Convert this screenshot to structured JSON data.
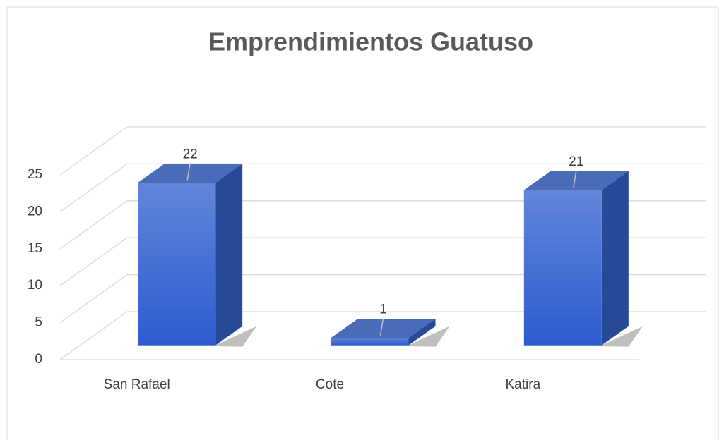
{
  "chart_data": {
    "type": "bar3d",
    "title": "Emprendimientos Guatuso",
    "categories": [
      "San Rafael",
      "Cote",
      "Katira"
    ],
    "values": [
      22,
      1,
      21
    ],
    "color": "#3a66cc",
    "ylim": [
      0,
      25
    ],
    "yticks": [
      0,
      5,
      10,
      15,
      20,
      25
    ],
    "grid": true
  }
}
